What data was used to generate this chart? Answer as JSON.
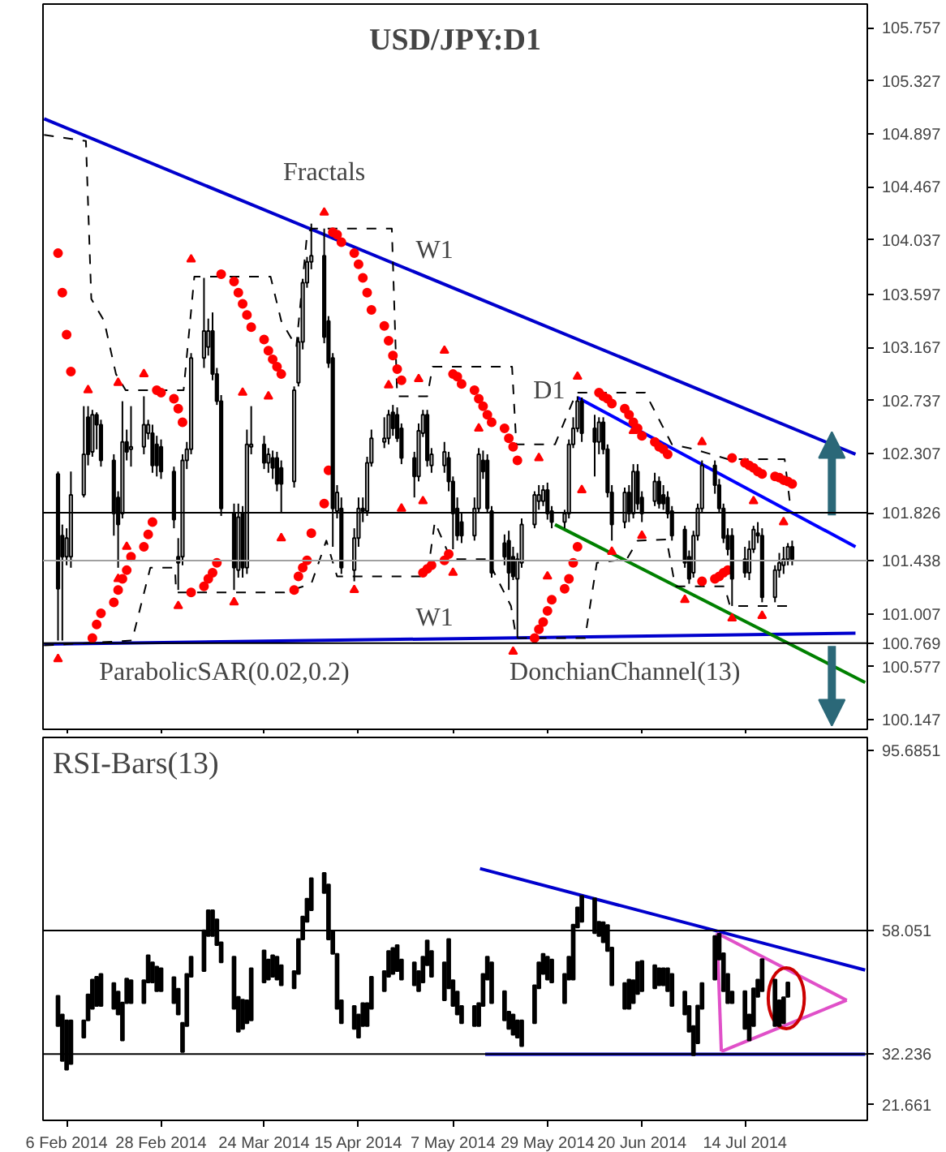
{
  "chart_data": [
    {
      "type": "candlestick",
      "title": "USD/JPY:D1",
      "xlim": [
        "2014-01-31T12:00",
        "2014-08-11T12:00"
      ],
      "x": [
        "2014-02-04",
        "2014-02-05",
        "2014-02-06",
        "2014-02-07",
        "2014-02-10",
        "2014-02-11",
        "2014-02-12",
        "2014-02-13",
        "2014-02-14",
        "2014-02-17",
        "2014-02-18",
        "2014-02-19",
        "2014-02-20",
        "2014-02-21",
        "2014-02-24",
        "2014-02-25",
        "2014-02-26",
        "2014-02-27",
        "2014-02-28",
        "2014-03-03",
        "2014-03-04",
        "2014-03-05",
        "2014-03-06",
        "2014-03-07",
        "2014-03-10",
        "2014-03-11",
        "2014-03-12",
        "2014-03-13",
        "2014-03-14",
        "2014-03-17",
        "2014-03-18",
        "2014-03-19",
        "2014-03-20",
        "2014-03-21",
        "2014-03-24",
        "2014-03-25",
        "2014-03-26",
        "2014-03-27",
        "2014-03-28",
        "2014-03-31",
        "2014-04-01",
        "2014-04-02",
        "2014-04-03",
        "2014-04-04",
        "2014-04-07",
        "2014-04-08",
        "2014-04-09",
        "2014-04-10",
        "2014-04-11",
        "2014-04-14",
        "2014-04-15",
        "2014-04-16",
        "2014-04-17",
        "2014-04-18",
        "2014-04-21",
        "2014-04-22",
        "2014-04-23",
        "2014-04-24",
        "2014-04-25",
        "2014-04-28",
        "2014-04-29",
        "2014-04-30",
        "2014-05-01",
        "2014-05-02",
        "2014-05-05",
        "2014-05-06",
        "2014-05-07",
        "2014-05-08",
        "2014-05-09",
        "2014-05-12",
        "2014-05-13",
        "2014-05-14",
        "2014-05-15",
        "2014-05-16",
        "2014-05-19",
        "2014-05-20",
        "2014-05-21",
        "2014-05-22",
        "2014-05-23",
        "2014-05-26",
        "2014-05-27",
        "2014-05-28",
        "2014-05-29",
        "2014-05-30",
        "2014-06-02",
        "2014-06-03",
        "2014-06-04",
        "2014-06-05",
        "2014-06-06",
        "2014-06-09",
        "2014-06-10",
        "2014-06-11",
        "2014-06-12",
        "2014-06-13",
        "2014-06-16",
        "2014-06-17",
        "2014-06-18",
        "2014-06-19",
        "2014-06-20",
        "2014-06-23",
        "2014-06-24",
        "2014-06-25",
        "2014-06-26",
        "2014-06-27",
        "2014-06-30",
        "2014-07-01",
        "2014-07-02",
        "2014-07-03",
        "2014-07-04",
        "2014-07-07",
        "2014-07-08",
        "2014-07-09",
        "2014-07-10",
        "2014-07-11",
        "2014-07-14",
        "2014-07-15",
        "2014-07-16",
        "2014-07-17",
        "2014-07-18",
        "2014-07-21",
        "2014-07-22",
        "2014-07-23",
        "2014-07-24",
        "2014-07-25"
      ],
      "xticks": [
        {
          "value": "2014-02-06",
          "label": null
        },
        {
          "value": "2014-02-28",
          "label": null
        },
        {
          "value": "2014-03-24",
          "label": null
        },
        {
          "value": "2014-04-15",
          "label": null
        },
        {
          "value": "2014-05-07",
          "label": null
        },
        {
          "value": "2014-05-29",
          "label": null
        },
        {
          "value": "2014-06-20",
          "label": null
        },
        {
          "value": "2014-07-14",
          "label": null
        }
      ],
      "tick_labels": "y",
      "ohlc": [
        [
          102.14,
          102.16,
          100.79,
          101.21
        ],
        [
          101.64,
          101.73,
          100.79,
          101.47
        ],
        [
          101.47,
          101.7,
          101.4,
          101.62
        ],
        [
          101.47,
          102.16,
          101.38,
          101.97
        ],
        [
          101.97,
          102.69,
          101.95,
          102.3
        ],
        [
          102.6,
          102.69,
          102.21,
          102.3
        ],
        [
          102.32,
          102.66,
          102.28,
          102.62
        ],
        [
          102.62,
          102.64,
          102.34,
          102.54
        ],
        [
          102.54,
          102.58,
          102.2,
          102.25
        ],
        [
          102.25,
          102.3,
          101.64,
          101.82
        ],
        [
          101.95,
          102.0,
          101.38,
          101.73
        ],
        [
          101.82,
          102.73,
          101.78,
          102.4
        ],
        [
          102.4,
          102.5,
          102.25,
          102.32
        ],
        [
          102.34,
          102.69,
          102.2,
          102.36
        ],
        [
          102.36,
          102.77,
          102.3,
          102.54
        ],
        [
          102.47,
          102.58,
          102.42,
          102.54
        ],
        [
          102.47,
          102.54,
          102.15,
          102.21
        ],
        [
          102.38,
          102.45,
          102.12,
          102.21
        ],
        [
          102.36,
          102.42,
          102.1,
          102.16
        ],
        [
          102.16,
          102.2,
          101.7,
          101.77
        ],
        [
          101.47,
          101.62,
          101.2,
          101.42
        ],
        [
          101.47,
          102.3,
          101.4,
          102.25
        ],
        [
          102.25,
          102.4,
          102.18,
          102.34
        ],
        [
          102.34,
          103.12,
          102.3,
          103.08
        ],
        [
          103.08,
          103.73,
          103.0,
          103.3
        ],
        [
          103.17,
          103.4,
          103.1,
          103.3
        ],
        [
          103.3,
          103.45,
          102.9,
          102.95
        ],
        [
          102.95,
          103.0,
          102.7,
          102.73
        ],
        [
          102.73,
          102.78,
          101.8,
          101.86
        ],
        [
          101.82,
          101.9,
          101.2,
          101.38
        ],
        [
          101.36,
          101.9,
          101.3,
          101.79
        ],
        [
          101.82,
          101.88,
          101.3,
          101.38
        ],
        [
          101.38,
          102.5,
          101.33,
          102.38
        ],
        [
          102.36,
          102.69,
          102.3,
          102.38
        ],
        [
          102.38,
          102.45,
          102.18,
          102.23
        ],
        [
          102.23,
          102.35,
          102.15,
          102.3
        ],
        [
          102.27,
          102.33,
          102.1,
          102.19
        ],
        [
          102.27,
          102.32,
          102.0,
          102.06
        ],
        [
          102.19,
          102.25,
          101.82,
          102.06
        ],
        [
          102.08,
          102.85,
          102.03,
          102.82
        ],
        [
          102.88,
          103.25,
          102.85,
          103.21
        ],
        [
          103.21,
          103.72,
          103.15,
          103.69
        ],
        [
          103.69,
          103.9,
          103.65,
          103.86
        ],
        [
          103.86,
          104.17,
          103.8,
          103.91
        ],
        [
          103.91,
          104.13,
          103.2,
          103.25
        ],
        [
          103.38,
          103.42,
          103.0,
          103.04
        ],
        [
          103.08,
          103.12,
          101.55,
          101.86
        ],
        [
          101.84,
          102.05,
          101.78,
          101.99
        ],
        [
          101.86,
          101.95,
          101.33,
          101.38
        ],
        [
          101.36,
          101.7,
          101.27,
          101.62
        ],
        [
          101.62,
          101.95,
          101.55,
          101.86
        ],
        [
          101.86,
          101.95,
          101.75,
          101.84
        ],
        [
          101.84,
          102.28,
          101.8,
          102.23
        ],
        [
          102.23,
          102.5,
          102.2,
          102.43
        ],
        [
          102.4,
          102.6,
          102.35,
          102.43
        ],
        [
          102.43,
          102.66,
          102.38,
          102.62
        ],
        [
          102.64,
          102.7,
          102.45,
          102.51
        ],
        [
          102.62,
          102.68,
          102.4,
          102.43
        ],
        [
          102.51,
          102.55,
          102.22,
          102.27
        ],
        [
          102.27,
          102.32,
          101.95,
          102.12
        ],
        [
          102.12,
          102.55,
          102.08,
          102.49
        ],
        [
          102.47,
          102.66,
          102.44,
          102.62
        ],
        [
          102.62,
          102.66,
          102.2,
          102.25
        ],
        [
          102.21,
          102.35,
          102.15,
          102.3
        ],
        [
          102.21,
          102.4,
          102.15,
          102.32
        ],
        [
          102.27,
          102.32,
          102.0,
          102.08
        ],
        [
          102.08,
          102.12,
          101.53,
          101.82
        ],
        [
          101.86,
          101.95,
          101.6,
          101.64
        ],
        [
          101.75,
          101.82,
          101.58,
          101.64
        ],
        [
          101.64,
          101.95,
          101.6,
          101.86
        ],
        [
          101.86,
          102.35,
          101.82,
          102.3
        ],
        [
          102.25,
          102.33,
          102.1,
          102.16
        ],
        [
          102.25,
          102.3,
          101.82,
          101.86
        ],
        [
          101.84,
          101.88,
          101.3,
          101.34
        ],
        [
          101.58,
          101.65,
          101.4,
          101.47
        ],
        [
          101.6,
          101.68,
          101.2,
          101.34
        ],
        [
          101.47,
          101.55,
          101.28,
          101.31
        ],
        [
          101.29,
          101.5,
          100.81,
          101.45
        ],
        [
          101.42,
          101.78,
          101.38,
          101.73
        ],
        [
          101.73,
          102.0,
          101.7,
          101.97
        ],
        [
          101.92,
          102.05,
          101.85,
          101.97
        ],
        [
          101.92,
          102.05,
          101.88,
          102.01
        ],
        [
          102.01,
          102.07,
          101.77,
          101.82
        ],
        [
          101.84,
          101.88,
          101.7,
          101.75
        ],
        [
          101.75,
          101.85,
          101.7,
          101.82
        ],
        [
          101.82,
          102.42,
          101.78,
          102.38
        ],
        [
          102.38,
          102.6,
          102.35,
          102.51
        ],
        [
          102.51,
          102.77,
          102.48,
          102.73
        ],
        [
          102.73,
          102.76,
          102.4,
          102.47
        ],
        [
          102.51,
          102.62,
          102.12,
          102.4
        ],
        [
          102.4,
          102.6,
          102.3,
          102.56
        ],
        [
          102.56,
          102.6,
          102.3,
          102.34
        ],
        [
          102.34,
          102.38,
          101.95,
          101.99
        ],
        [
          101.99,
          102.05,
          101.6,
          101.73
        ],
        [
          101.75,
          102.03,
          101.7,
          101.99
        ],
        [
          101.99,
          102.05,
          101.75,
          101.82
        ],
        [
          101.82,
          102.22,
          101.78,
          102.16
        ],
        [
          102.16,
          102.22,
          101.85,
          101.9
        ],
        [
          101.95,
          102.0,
          101.75,
          101.82
        ],
        [
          101.92,
          102.15,
          101.88,
          102.08
        ],
        [
          102.08,
          102.12,
          101.86,
          101.9
        ],
        [
          101.97,
          102.05,
          101.85,
          101.9
        ],
        [
          101.95,
          102.0,
          101.78,
          101.82
        ],
        [
          101.84,
          101.88,
          101.6,
          101.64
        ],
        [
          101.69,
          101.72,
          101.38,
          101.42
        ],
        [
          101.47,
          101.52,
          101.25,
          101.29
        ],
        [
          101.34,
          101.68,
          101.3,
          101.64
        ],
        [
          101.64,
          101.9,
          101.6,
          101.86
        ],
        [
          101.86,
          102.25,
          101.82,
          102.21
        ],
        [
          102.21,
          102.25,
          101.98,
          102.05
        ],
        [
          102.05,
          102.1,
          101.82,
          101.86
        ],
        [
          101.86,
          101.9,
          101.58,
          101.62
        ],
        [
          101.64,
          101.7,
          101.48,
          101.53
        ],
        [
          101.64,
          101.7,
          101.07,
          101.29
        ],
        [
          101.45,
          101.55,
          101.3,
          101.34
        ],
        [
          101.34,
          101.6,
          101.28,
          101.53
        ],
        [
          101.53,
          101.72,
          101.5,
          101.69
        ],
        [
          101.66,
          101.75,
          101.58,
          101.64
        ],
        [
          101.64,
          101.7,
          101.1,
          101.14
        ],
        [
          101.14,
          101.4,
          101.1,
          101.36
        ],
        [
          101.36,
          101.5,
          101.3,
          101.42
        ],
        [
          101.4,
          101.55,
          101.33,
          101.45
        ],
        [
          101.45,
          101.58,
          101.4,
          101.55
        ],
        [
          101.55,
          101.6,
          101.4,
          101.45
        ]
      ],
      "series": [
        {
          "type": "line",
          "color": "#0000cd",
          "x": [
            "2014-01-31T18:00",
            "2014-08-08T18:00"
          ],
          "values": [
            105.02,
            102.3
          ]
        },
        {
          "type": "line",
          "color": "#0000cd",
          "x": [
            "2014-01-31T18:00",
            "2014-08-08T18:00"
          ],
          "values": [
            100.76,
            100.85
          ]
        },
        {
          "type": "line",
          "color": "#0000ff",
          "x": [
            "2014-06-05",
            "2014-08-08T18:00"
          ],
          "values": [
            102.76,
            101.55
          ]
        },
        {
          "type": "line",
          "color": "#008000",
          "x": [
            "2014-05-30T18:00",
            "2014-08-11"
          ],
          "values": [
            101.73,
            100.45
          ]
        },
        {
          "type": "line",
          "color": "#000000",
          "line_style": "dashed",
          "x": [
            "2014-01-31T18:00",
            "2014-02-10T12:00",
            "2014-02-11T18:00",
            "2014-02-14T18:00",
            "2014-02-17T12:00",
            "2014-02-19T18:00",
            "2014-03-05T06:00",
            "2014-03-07T18:00",
            "2014-03-25T12:00",
            "2014-03-28",
            "2014-03-31T12:00",
            "2014-04-03",
            "2014-04-04",
            "2014-04-22T18:00",
            "2014-04-24",
            "2014-05-01",
            "2014-05-02T06:00",
            "2014-05-20T18:00",
            "2014-05-21T18:00",
            "2014-05-30T18:00",
            "2014-06-04T18:00",
            "2014-06-20T18:00",
            "2014-06-27",
            "2014-07-02T06:00",
            "2014-07-10",
            "2014-07-23T06:00",
            "2014-07-24T12:00"
          ],
          "values": [
            104.89,
            104.84,
            103.56,
            103.38,
            102.95,
            102.82,
            102.82,
            103.74,
            103.74,
            103.38,
            103.17,
            104.08,
            104.13,
            104.13,
            102.77,
            102.77,
            103.01,
            103.01,
            102.38,
            102.38,
            102.8,
            102.8,
            102.38,
            102.34,
            102.26,
            102.26,
            101.9
          ]
        },
        {
          "type": "line",
          "color": "#000000",
          "line_style": "dashed",
          "x": [
            "2014-01-31T18:00",
            "2014-02-21T06:00",
            "2014-02-25T12:00",
            "2014-03-03T06:00",
            "2014-03-03T12:00",
            "2014-03-28T18:00",
            "2014-04-04",
            "2014-04-07T12:00",
            "2014-04-10",
            "2014-05-01",
            "2014-05-02T18:00",
            "2014-05-06T12:00",
            "2014-05-15",
            "2014-05-20T12:00",
            "2014-05-21T18:00",
            "2014-06-06T18:00",
            "2014-06-09T12:00",
            "2014-06-16T12:00",
            "2014-06-19",
            "2014-06-25T18:00",
            "2014-06-27T18:00",
            "2014-07-09T06:00",
            "2014-07-10T12:00",
            "2014-07-24"
          ],
          "values": [
            100.75,
            100.79,
            101.38,
            101.38,
            101.18,
            101.18,
            101.25,
            101.6,
            101.31,
            101.31,
            101.75,
            101.45,
            101.45,
            101.07,
            100.81,
            100.81,
            101.42,
            101.45,
            101.6,
            101.61,
            101.23,
            101.23,
            101.07,
            101.07
          ]
        },
        {
          "type": "scatter",
          "color": "#ff0000",
          "marker": "circle",
          "x": [
            "2014-02-04",
            "2014-02-05",
            "2014-02-06",
            "2014-02-07",
            "2014-02-12",
            "2014-02-13",
            "2014-02-14",
            "2014-02-17",
            "2014-02-18",
            "2014-02-19",
            "2014-02-20",
            "2014-02-21",
            "2014-02-24",
            "2014-02-25",
            "2014-02-26",
            "2014-02-27",
            "2014-02-28",
            "2014-03-03",
            "2014-03-04",
            "2014-03-05",
            "2014-03-07",
            "2014-03-10",
            "2014-03-11",
            "2014-03-12",
            "2014-03-13",
            "2014-03-14",
            "2014-03-17",
            "2014-03-18",
            "2014-03-19",
            "2014-03-20",
            "2014-03-21",
            "2014-03-24",
            "2014-03-25",
            "2014-03-26",
            "2014-03-27",
            "2014-03-28",
            "2014-03-31",
            "2014-04-01",
            "2014-04-02",
            "2014-04-03",
            "2014-04-04",
            "2014-04-07",
            "2014-04-08",
            "2014-04-09",
            "2014-04-10",
            "2014-04-11",
            "2014-04-14",
            "2014-04-15",
            "2014-04-16",
            "2014-04-17",
            "2014-04-18",
            "2014-04-21",
            "2014-04-22",
            "2014-04-23",
            "2014-04-24",
            "2014-04-25",
            "2014-04-30",
            "2014-05-01",
            "2014-05-02",
            "2014-05-05",
            "2014-05-06",
            "2014-05-07",
            "2014-05-08",
            "2014-05-09",
            "2014-05-12",
            "2014-05-13",
            "2014-05-14",
            "2014-05-15",
            "2014-05-16",
            "2014-05-19",
            "2014-05-20",
            "2014-05-21",
            "2014-05-22",
            "2014-05-26",
            "2014-05-27",
            "2014-05-28",
            "2014-05-29",
            "2014-05-30",
            "2014-06-02",
            "2014-06-03",
            "2014-06-04",
            "2014-06-05",
            "2014-06-10",
            "2014-06-11",
            "2014-06-12",
            "2014-06-13",
            "2014-06-16",
            "2014-06-17",
            "2014-06-18",
            "2014-06-19",
            "2014-06-20",
            "2014-06-23",
            "2014-06-24",
            "2014-06-25",
            "2014-06-26",
            "2014-07-04",
            "2014-07-07",
            "2014-07-08",
            "2014-07-09",
            "2014-07-10",
            "2014-07-11",
            "2014-07-14",
            "2014-07-15",
            "2014-07-16",
            "2014-07-17",
            "2014-07-18",
            "2014-07-21",
            "2014-07-22",
            "2014-07-23",
            "2014-07-24",
            "2014-07-25"
          ],
          "values": [
            103.93,
            103.61,
            103.27,
            102.97,
            100.81,
            100.92,
            101.01,
            101.1,
            101.2,
            101.29,
            101.36,
            101.47,
            101.55,
            101.65,
            101.75,
            102.82,
            102.8,
            102.75,
            102.67,
            102.56,
            101.18,
            101.23,
            101.29,
            101.34,
            101.42,
            103.76,
            103.7,
            103.61,
            103.52,
            103.43,
            103.33,
            103.23,
            103.14,
            103.07,
            103.01,
            102.95,
            101.2,
            101.31,
            101.38,
            101.44,
            101.66,
            101.9,
            102.17,
            104.1,
            104.08,
            104.02,
            103.93,
            103.84,
            103.73,
            103.61,
            103.47,
            103.34,
            103.22,
            103.1,
            102.99,
            102.9,
            101.34,
            101.37,
            101.4,
            101.44,
            101.49,
            102.95,
            102.93,
            102.87,
            102.82,
            102.75,
            102.69,
            102.62,
            102.56,
            102.51,
            102.43,
            102.36,
            102.25,
            100.81,
            100.88,
            100.94,
            101.03,
            101.12,
            101.21,
            101.29,
            101.42,
            101.55,
            102.8,
            102.77,
            102.75,
            102.71,
            102.67,
            102.62,
            102.56,
            102.51,
            102.45,
            102.4,
            102.36,
            102.34,
            102.3,
            101.27,
            101.29,
            101.31,
            101.34,
            101.36,
            102.27,
            102.23,
            102.21,
            102.19,
            102.16,
            102.14,
            102.12,
            102.11,
            102.09,
            102.08,
            102.06
          ]
        },
        {
          "type": "scatter",
          "color": "#ff0000",
          "marker": "triangle",
          "x": [
            "2014-02-11",
            "2014-02-18",
            "2014-02-24",
            "2014-03-07",
            "2014-03-19",
            "2014-03-25",
            "2014-04-07",
            "2014-04-22",
            "2014-04-29",
            "2014-05-05",
            "2014-05-13",
            "2014-05-27",
            "2014-06-05",
            "2014-06-18",
            "2014-07-04",
            "2014-07-16",
            "2014-07-23"
          ],
          "values": [
            102.82,
            102.88,
            102.95,
            103.88,
            102.8,
            102.77,
            104.26,
            102.86,
            102.91,
            103.14,
            102.51,
            102.27,
            102.93,
            102.49,
            102.4,
            101.92,
            101.75
          ]
        },
        {
          "type": "scatter",
          "color": "#ff0000",
          "marker": "triangle",
          "x": [
            "2014-02-04",
            "2014-02-18",
            "2014-02-20",
            "2014-03-04",
            "2014-03-17",
            "2014-03-28",
            "2014-04-14",
            "2014-04-25",
            "2014-04-30",
            "2014-05-07",
            "2014-05-21",
            "2014-05-29",
            "2014-06-06",
            "2014-06-13",
            "2014-06-20",
            "2014-06-30",
            "2014-07-11",
            "2014-07-18"
          ],
          "values": [
            100.64,
            101.29,
            101.55,
            101.07,
            101.1,
            101.62,
            101.2,
            101.86,
            101.92,
            101.34,
            100.7,
            101.31,
            102.01,
            101.51,
            101.64,
            101.12,
            100.97,
            100.99
          ]
        }
      ],
      "ylim": [
        100.07,
        105.95
      ],
      "yticks": [
        100.147,
        100.577,
        101.007,
        102.307,
        102.737,
        103.167,
        103.597,
        104.037,
        104.467,
        104.897,
        105.327,
        105.757
      ],
      "ref_lines": [
        {
          "axis": "y",
          "value": 101.826,
          "label": "101.826",
          "color": "#000000"
        },
        {
          "axis": "y",
          "value": 101.438,
          "label": "101.438",
          "color": "#a0a0a0"
        },
        {
          "axis": "y",
          "value": 100.769,
          "label": "100.769",
          "color": "#000000"
        }
      ],
      "annotations": [
        {
          "text": "Fractals",
          "x": "2014-04-07",
          "y": 104.26
        },
        "W1",
        "D1",
        "W1",
        "ParabolicSAR(0.02,0.2)",
        "DonchianChannel(13)"
      ]
    },
    {
      "type": "bar",
      "title": "RSI-Bars(13)",
      "color": "#000000",
      "xlim": [
        "2014-01-31T12:00",
        "2014-08-11T12:00"
      ],
      "x": [
        "2014-02-04",
        "2014-02-05",
        "2014-02-06",
        "2014-02-07",
        "2014-02-10",
        "2014-02-11",
        "2014-02-12",
        "2014-02-13",
        "2014-02-14",
        "2014-02-17",
        "2014-02-18",
        "2014-02-19",
        "2014-02-20",
        "2014-02-21",
        "2014-02-24",
        "2014-02-25",
        "2014-02-26",
        "2014-02-27",
        "2014-02-28",
        "2014-03-03",
        "2014-03-04",
        "2014-03-05",
        "2014-03-06",
        "2014-03-07",
        "2014-03-10",
        "2014-03-11",
        "2014-03-12",
        "2014-03-13",
        "2014-03-14",
        "2014-03-17",
        "2014-03-18",
        "2014-03-19",
        "2014-03-20",
        "2014-03-21",
        "2014-03-24",
        "2014-03-25",
        "2014-03-26",
        "2014-03-27",
        "2014-03-28",
        "2014-03-31",
        "2014-04-01",
        "2014-04-02",
        "2014-04-03",
        "2014-04-04",
        "2014-04-07",
        "2014-04-08",
        "2014-04-09",
        "2014-04-10",
        "2014-04-11",
        "2014-04-14",
        "2014-04-15",
        "2014-04-16",
        "2014-04-17",
        "2014-04-18",
        "2014-04-21",
        "2014-04-22",
        "2014-04-23",
        "2014-04-24",
        "2014-04-25",
        "2014-04-28",
        "2014-04-29",
        "2014-04-30",
        "2014-05-01",
        "2014-05-02",
        "2014-05-05",
        "2014-05-06",
        "2014-05-07",
        "2014-05-08",
        "2014-05-09",
        "2014-05-12",
        "2014-05-13",
        "2014-05-14",
        "2014-05-15",
        "2014-05-16",
        "2014-05-19",
        "2014-05-20",
        "2014-05-21",
        "2014-05-22",
        "2014-05-23",
        "2014-05-26",
        "2014-05-27",
        "2014-05-28",
        "2014-05-29",
        "2014-05-30",
        "2014-06-02",
        "2014-06-03",
        "2014-06-04",
        "2014-06-05",
        "2014-06-06",
        "2014-06-09",
        "2014-06-10",
        "2014-06-11",
        "2014-06-12",
        "2014-06-13",
        "2014-06-16",
        "2014-06-17",
        "2014-06-18",
        "2014-06-19",
        "2014-06-20",
        "2014-06-23",
        "2014-06-24",
        "2014-06-25",
        "2014-06-26",
        "2014-06-27",
        "2014-06-30",
        "2014-07-01",
        "2014-07-02",
        "2014-07-03",
        "2014-07-04",
        "2014-07-07",
        "2014-07-08",
        "2014-07-09",
        "2014-07-10",
        "2014-07-11",
        "2014-07-14",
        "2014-07-15",
        "2014-07-16",
        "2014-07-17",
        "2014-07-18",
        "2014-07-21",
        "2014-07-22",
        "2014-07-23",
        "2014-07-24"
      ],
      "xticks": [
        {
          "value": "2014-02-06",
          "label": "6 Feb 2014"
        },
        {
          "value": "2014-02-28",
          "label": "28 Feb 2014"
        },
        {
          "value": "2014-03-24",
          "label": "24 Mar 2014"
        },
        {
          "value": "2014-04-15",
          "label": "15 Apr 2014"
        },
        {
          "value": "2014-05-07",
          "label": "7 May 2014"
        },
        {
          "value": "2014-05-29",
          "label": "29 May 2014"
        },
        {
          "value": "2014-06-20",
          "label": "20 Jun 2014"
        },
        {
          "value": "2014-07-14",
          "label": "14 Jul 2014"
        }
      ],
      "base": [
        38.1,
        30.8,
        29.0,
        30.2,
        35.7,
        39.3,
        41.7,
        42.3,
        42.3,
        41.7,
        40.5,
        35.1,
        42.9,
        42.9,
        42.9,
        47.2,
        47.2,
        45.4,
        45.4,
        42.9,
        40.5,
        32.7,
        38.1,
        48.4,
        49.6,
        56.9,
        56.9,
        55.0,
        51.4,
        41.7,
        36.9,
        37.5,
        38.7,
        39.3,
        47.2,
        47.8,
        48.4,
        47.8,
        46.6,
        46.0,
        49.0,
        56.2,
        59.9,
        62.3,
        65.9,
        56.2,
        53.2,
        41.7,
        38.7,
        37.5,
        35.7,
        38.1,
        38.1,
        41.7,
        45.4,
        48.4,
        49.0,
        49.6,
        47.8,
        46.6,
        45.4,
        47.2,
        50.8,
        48.4,
        43.5,
        46.0,
        42.3,
        40.5,
        38.7,
        38.1,
        38.1,
        42.3,
        47.8,
        42.9,
        39.3,
        37.5,
        36.3,
        35.7,
        33.9,
        38.7,
        46.0,
        49.0,
        47.8,
        47.2,
        42.9,
        47.8,
        47.8,
        58.7,
        59.9,
        57.5,
        56.9,
        55.6,
        53.8,
        46.6,
        41.7,
        41.7,
        42.9,
        44.8,
        45.4,
        46.0,
        46.6,
        46.6,
        45.4,
        42.3,
        40.5,
        36.9,
        32.0,
        34.5,
        41.7,
        47.8,
        52.0,
        45.4,
        42.9,
        42.9,
        37.5,
        35.1,
        38.1,
        44.2,
        45.4,
        38.1,
        38.1,
        38.7,
        44.2
      ],
      "values": [
        6.3,
        9.7,
        10.3,
        9.1,
        3.6,
        5.4,
        6.1,
        6.1,
        6.7,
        5.4,
        4.8,
        7.9,
        5.1,
        4.8,
        4.8,
        5.7,
        4.2,
        5.1,
        4.8,
        5.4,
        5.4,
        6.1,
        10.9,
        4.2,
        8.5,
        5.4,
        5.4,
        5.4,
        4.2,
        10.9,
        7.3,
        6.1,
        4.8,
        10.9,
        6.7,
        4.2,
        4.5,
        4.8,
        4.2,
        3.6,
        7.3,
        4.8,
        4.8,
        6.7,
        4.2,
        11.5,
        4.8,
        11.5,
        4.8,
        4.8,
        4.8,
        4.8,
        4.8,
        6.7,
        4.2,
        5.4,
        5.4,
        5.4,
        4.2,
        4.8,
        4.2,
        5.4,
        5.2,
        5.4,
        7.9,
        10.3,
        5.4,
        4.8,
        3.6,
        4.2,
        4.8,
        6.7,
        4.8,
        8.5,
        6.1,
        3.6,
        4.2,
        3.6,
        5.4,
        7.9,
        5.4,
        4.2,
        4.8,
        4.8,
        6.1,
        4.8,
        11.5,
        4.2,
        5.4,
        7.3,
        3.0,
        4.2,
        5.4,
        7.9,
        5.4,
        6.1,
        4.8,
        6.7,
        6.3,
        4.8,
        3.6,
        3.6,
        4.8,
        6.7,
        4.8,
        5.4,
        6.1,
        7.9,
        5.4,
        9.1,
        5.4,
        7.9,
        6.1,
        2.4,
        7.9,
        5.4,
        7.9,
        3.6,
        6.7,
        9.7,
        5.4,
        5.4,
        3.0
      ],
      "series": [
        {
          "type": "line",
          "color": "#0000cd",
          "x": [
            "2014-05-13T07:00",
            "2014-08-11"
          ],
          "values": [
            71.0,
            49.8
          ]
        },
        {
          "type": "line",
          "color": "#0000cd",
          "x": [
            "2014-05-14T12:00",
            "2014-08-11"
          ],
          "values": [
            32.2,
            32.2
          ]
        },
        {
          "type": "line",
          "color": "#e050c8",
          "x": [
            "2014-07-07T12:00",
            "2014-08-06T17:00"
          ],
          "values": [
            57.5,
            43.5
          ]
        },
        {
          "type": "line",
          "color": "#e050c8",
          "x": [
            "2014-07-08T12:00",
            "2014-08-06T17:00"
          ],
          "values": [
            32.8,
            43.5
          ]
        },
        {
          "type": "line",
          "color": "#e050c8",
          "x": [
            "2014-07-07T12:00",
            "2014-07-08T12:00"
          ],
          "values": [
            57.5,
            32.8
          ]
        }
      ],
      "ylim": [
        18.4,
        98.4
      ],
      "yticks": [
        21.661,
        95.6851
      ],
      "ref_lines": [
        {
          "axis": "y",
          "value": 58.051,
          "label": "58.051",
          "color": "#000000"
        },
        {
          "axis": "y",
          "value": 32.236,
          "label": "32.236",
          "color": "#000000"
        }
      ]
    }
  ]
}
